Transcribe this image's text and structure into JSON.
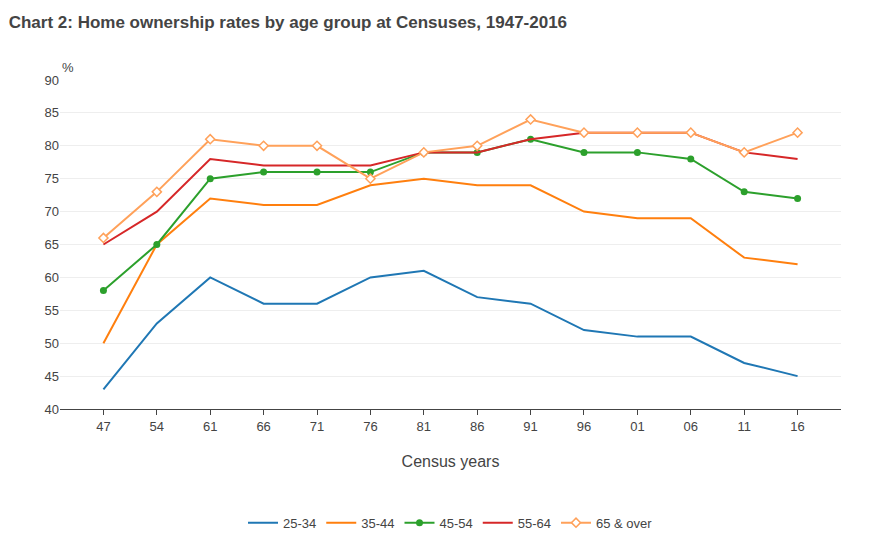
{
  "chart_data": {
    "type": "line",
    "title": "Chart 2: Home ownership rates by age group at Censuses, 1947-2016",
    "xlabel": "Census years",
    "ylabel": "%",
    "categories": [
      "47",
      "54",
      "61",
      "66",
      "71",
      "76",
      "81",
      "86",
      "91",
      "96",
      "01",
      "06",
      "11",
      "16"
    ],
    "series": [
      {
        "name": "25-34",
        "values": [
          43,
          53,
          60,
          56,
          56,
          60,
          61,
          57,
          56,
          52,
          51,
          51,
          47,
          45
        ]
      },
      {
        "name": "35-44",
        "values": [
          50,
          65,
          72,
          71,
          71,
          74,
          75,
          74,
          74,
          70,
          69,
          69,
          63,
          62
        ]
      },
      {
        "name": "45-54",
        "values": [
          58,
          65,
          75,
          76,
          76,
          76,
          79,
          79,
          81,
          79,
          79,
          78,
          73,
          72
        ],
        "marker": "circle"
      },
      {
        "name": "55-64",
        "values": [
          65,
          70,
          78,
          77,
          77,
          77,
          79,
          79,
          81,
          82,
          82,
          82,
          79,
          78
        ]
      },
      {
        "name": "65 & over",
        "values": [
          66,
          73,
          81,
          80,
          80,
          75,
          79,
          80,
          84,
          82,
          82,
          82,
          79,
          82
        ],
        "marker": "diamond"
      }
    ],
    "ylim": [
      40,
      90
    ],
    "yticks": [
      40,
      45,
      50,
      55,
      60,
      65,
      70,
      75,
      80,
      85,
      90
    ],
    "grid": true,
    "legend": "bottom"
  }
}
